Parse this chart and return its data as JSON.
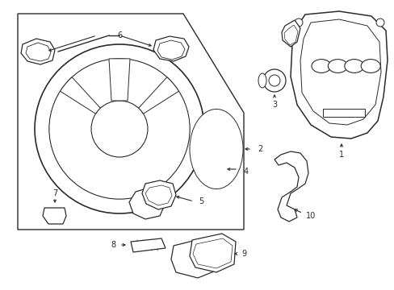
{
  "bg_color": "#ffffff",
  "line_color": "#2a2a2a",
  "figsize": [
    4.89,
    3.6
  ],
  "dpi": 100
}
